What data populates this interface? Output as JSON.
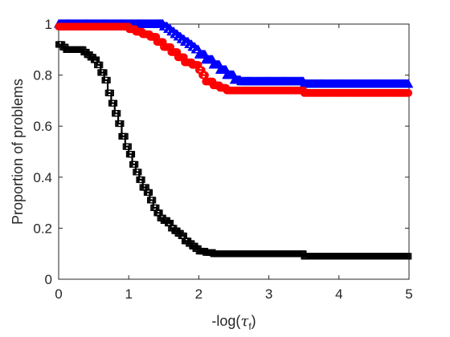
{
  "chart_data": {
    "type": "line",
    "title": "",
    "xlabel": "-log(τ_f)",
    "xlabel_main": "-log(",
    "xlabel_symbol": "τ",
    "xlabel_sub": "f",
    "xlabel_close": ")",
    "ylabel": "Proportion of problems",
    "xlim": [
      0,
      5
    ],
    "ylim": [
      0,
      1
    ],
    "x_ticks": [
      0,
      1,
      2,
      3,
      4,
      5
    ],
    "x_tick_labels": [
      "0",
      "1",
      "2",
      "3",
      "4",
      "5"
    ],
    "y_ticks": [
      0,
      0.2,
      0.4,
      0.6,
      0.8,
      1
    ],
    "y_tick_labels": [
      "0",
      "0.2",
      "0.4",
      "0.6",
      "0.8",
      "1"
    ],
    "grid": false,
    "legend": "none",
    "series": [
      {
        "color": "#0000ff",
        "marker": "triangle",
        "x": [
          0,
          0.5,
          1.0,
          1.4,
          1.5,
          1.55,
          1.6,
          1.65,
          1.7,
          1.75,
          1.8,
          1.85,
          1.9,
          1.95,
          2.0,
          2.1,
          2.2,
          2.3,
          2.4,
          2.5,
          2.6,
          3.0,
          3.4,
          3.5,
          4.0,
          4.5,
          5.0
        ],
        "y": [
          1.0,
          1.0,
          1.0,
          1.0,
          0.99,
          0.98,
          0.97,
          0.96,
          0.95,
          0.94,
          0.93,
          0.92,
          0.91,
          0.9,
          0.88,
          0.86,
          0.84,
          0.82,
          0.8,
          0.78,
          0.775,
          0.775,
          0.775,
          0.765,
          0.765,
          0.765,
          0.765
        ]
      },
      {
        "color": "#ff0000",
        "marker": "circle",
        "x": [
          0,
          0.5,
          0.9,
          1.0,
          1.1,
          1.2,
          1.3,
          1.4,
          1.5,
          1.6,
          1.7,
          1.8,
          1.9,
          2.0,
          2.05,
          2.1,
          2.2,
          2.3,
          2.4,
          2.6,
          3.0,
          3.5,
          4.0,
          4.5,
          5.0
        ],
        "y": [
          0.99,
          0.99,
          0.99,
          0.98,
          0.97,
          0.96,
          0.95,
          0.93,
          0.91,
          0.89,
          0.87,
          0.85,
          0.84,
          0.82,
          0.8,
          0.775,
          0.76,
          0.75,
          0.74,
          0.74,
          0.74,
          0.73,
          0.73,
          0.73,
          0.73
        ]
      },
      {
        "color": "#000000",
        "marker": "square",
        "x": [
          0,
          0.05,
          0.1,
          0.2,
          0.3,
          0.35,
          0.4,
          0.45,
          0.5,
          0.55,
          0.6,
          0.65,
          0.7,
          0.75,
          0.8,
          0.85,
          0.9,
          0.95,
          1.0,
          1.05,
          1.1,
          1.15,
          1.2,
          1.25,
          1.3,
          1.35,
          1.4,
          1.45,
          1.5,
          1.55,
          1.6,
          1.65,
          1.7,
          1.75,
          1.8,
          1.85,
          1.9,
          1.95,
          2.0,
          2.1,
          2.2,
          2.5,
          3.0,
          3.4,
          3.5,
          4.0,
          4.5,
          5.0
        ],
        "y": [
          0.92,
          0.91,
          0.9,
          0.9,
          0.9,
          0.89,
          0.88,
          0.87,
          0.86,
          0.84,
          0.81,
          0.78,
          0.73,
          0.69,
          0.65,
          0.61,
          0.56,
          0.52,
          0.49,
          0.45,
          0.42,
          0.39,
          0.36,
          0.34,
          0.31,
          0.28,
          0.26,
          0.24,
          0.23,
          0.22,
          0.2,
          0.19,
          0.18,
          0.17,
          0.15,
          0.14,
          0.13,
          0.12,
          0.11,
          0.105,
          0.1,
          0.1,
          0.1,
          0.1,
          0.09,
          0.09,
          0.09,
          0.09
        ]
      }
    ]
  }
}
